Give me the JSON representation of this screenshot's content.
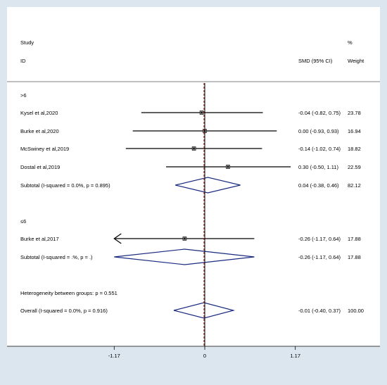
{
  "headers": {
    "study_top": "Study",
    "study_bottom": "ID",
    "effect": "SMD (95% CI)",
    "weight_top": "%",
    "weight_bottom": "Weight"
  },
  "colors": {
    "background": "#DCE6EE",
    "panel": "#FFFFFF",
    "diamond": "#1A2A80",
    "overall_line": "#A0201E"
  },
  "chart_data": {
    "type": "forest",
    "x_ticks": [
      -1.17,
      0,
      1.17
    ],
    "x_tick_labels": [
      "-1.17",
      "0",
      "1.17"
    ],
    "xlim": [
      -1.17,
      1.17
    ],
    "null_value": 0,
    "overall_effect": -0.01,
    "rows": [
      {
        "kind": "group",
        "label": ">6"
      },
      {
        "kind": "study",
        "label": "Kysel et al,2020",
        "est": -0.04,
        "lo": -0.82,
        "hi": 0.75,
        "ci_text": "-0.04 (-0.82, 0.75)",
        "weight": "23.78"
      },
      {
        "kind": "study",
        "label": "Burke et al,2020",
        "est": 0.0,
        "lo": -0.93,
        "hi": 0.93,
        "ci_text": "0.00 (-0.93, 0.93)",
        "weight": "16.94"
      },
      {
        "kind": "study",
        "label": "McSwiney et al,2019",
        "est": -0.14,
        "lo": -1.02,
        "hi": 0.74,
        "ci_text": "-0.14 (-1.02, 0.74)",
        "weight": "18.82"
      },
      {
        "kind": "study",
        "label": "Dostal et al,2019",
        "est": 0.3,
        "lo": -0.5,
        "hi": 1.11,
        "ci_text": "0.30 (-0.50, 1.11)",
        "weight": "22.59"
      },
      {
        "kind": "subtotal",
        "label": "Subtotal  (I-squared = 0.0%, p = 0.895)",
        "est": 0.04,
        "lo": -0.38,
        "hi": 0.46,
        "ci_text": "0.04 (-0.38, 0.46)",
        "weight": "82.12"
      },
      {
        "kind": "blank"
      },
      {
        "kind": "group",
        "label": "≤6"
      },
      {
        "kind": "study",
        "label": "Burke et al,2017",
        "est": -0.26,
        "lo": -1.17,
        "hi": 0.64,
        "ci_text": "-0.26 (-1.17, 0.64)",
        "weight": "17.88",
        "arrow_left": true
      },
      {
        "kind": "subtotal",
        "label": "Subtotal  (I-squared = .%, p = .)",
        "est": -0.26,
        "lo": -1.17,
        "hi": 0.64,
        "ci_text": "-0.26 (-1.17, 0.64)",
        "weight": "17.88"
      },
      {
        "kind": "blank"
      },
      {
        "kind": "note",
        "label": "Heterogeneity between groups: p = 0.551"
      },
      {
        "kind": "overall",
        "label": "Overall  (I-squared = 0.0%, p = 0.916)",
        "est": -0.01,
        "lo": -0.4,
        "hi": 0.37,
        "ci_text": "-0.01 (-0.40, 0.37)",
        "weight": "100.00"
      }
    ]
  }
}
